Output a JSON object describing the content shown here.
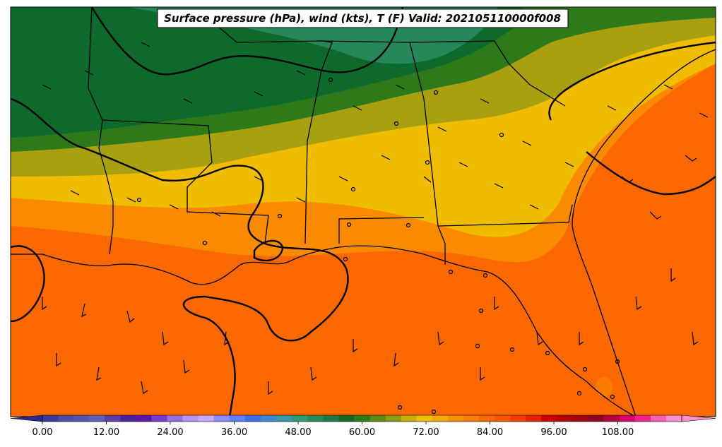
{
  "title": "Surface pressure (hPa), wind (kts), T (F) Valid: 202105110000f008",
  "colorbar": {
    "tick_labels": [
      "0.00",
      "12.00",
      "24.00",
      "36.00",
      "48.00",
      "60.00",
      "72.00",
      "84.00",
      "96.00",
      "108.00"
    ],
    "colors": [
      "#3a3a9e",
      "#4a4aa8",
      "#5555b0",
      "#6060b5",
      "#5b3fa6",
      "#4b1fa0",
      "#5a14b0",
      "#7a3ccf",
      "#9a6ce0",
      "#b896f0",
      "#c8a8f8",
      "#8c8cff",
      "#5f7fff",
      "#3a6fe8",
      "#3e86d0",
      "#3a9aa8",
      "#2e9a7a",
      "#2a8a5a",
      "#1e7a40",
      "#106a24",
      "#2e7a1a",
      "#5a8a14",
      "#8e9a12",
      "#c4b00a",
      "#f0c000",
      "#f4a800",
      "#f89000",
      "#fa7c00",
      "#fb6800",
      "#fa5400",
      "#f43a00",
      "#e42000",
      "#cc0000",
      "#b40000",
      "#a00010",
      "#900020",
      "#b00040",
      "#d8006a",
      "#f0208c",
      "#f860b0",
      "#ff90d0"
    ],
    "underflow_color": "#2a2a8e",
    "overflow_color": "#ff90d0"
  }
}
